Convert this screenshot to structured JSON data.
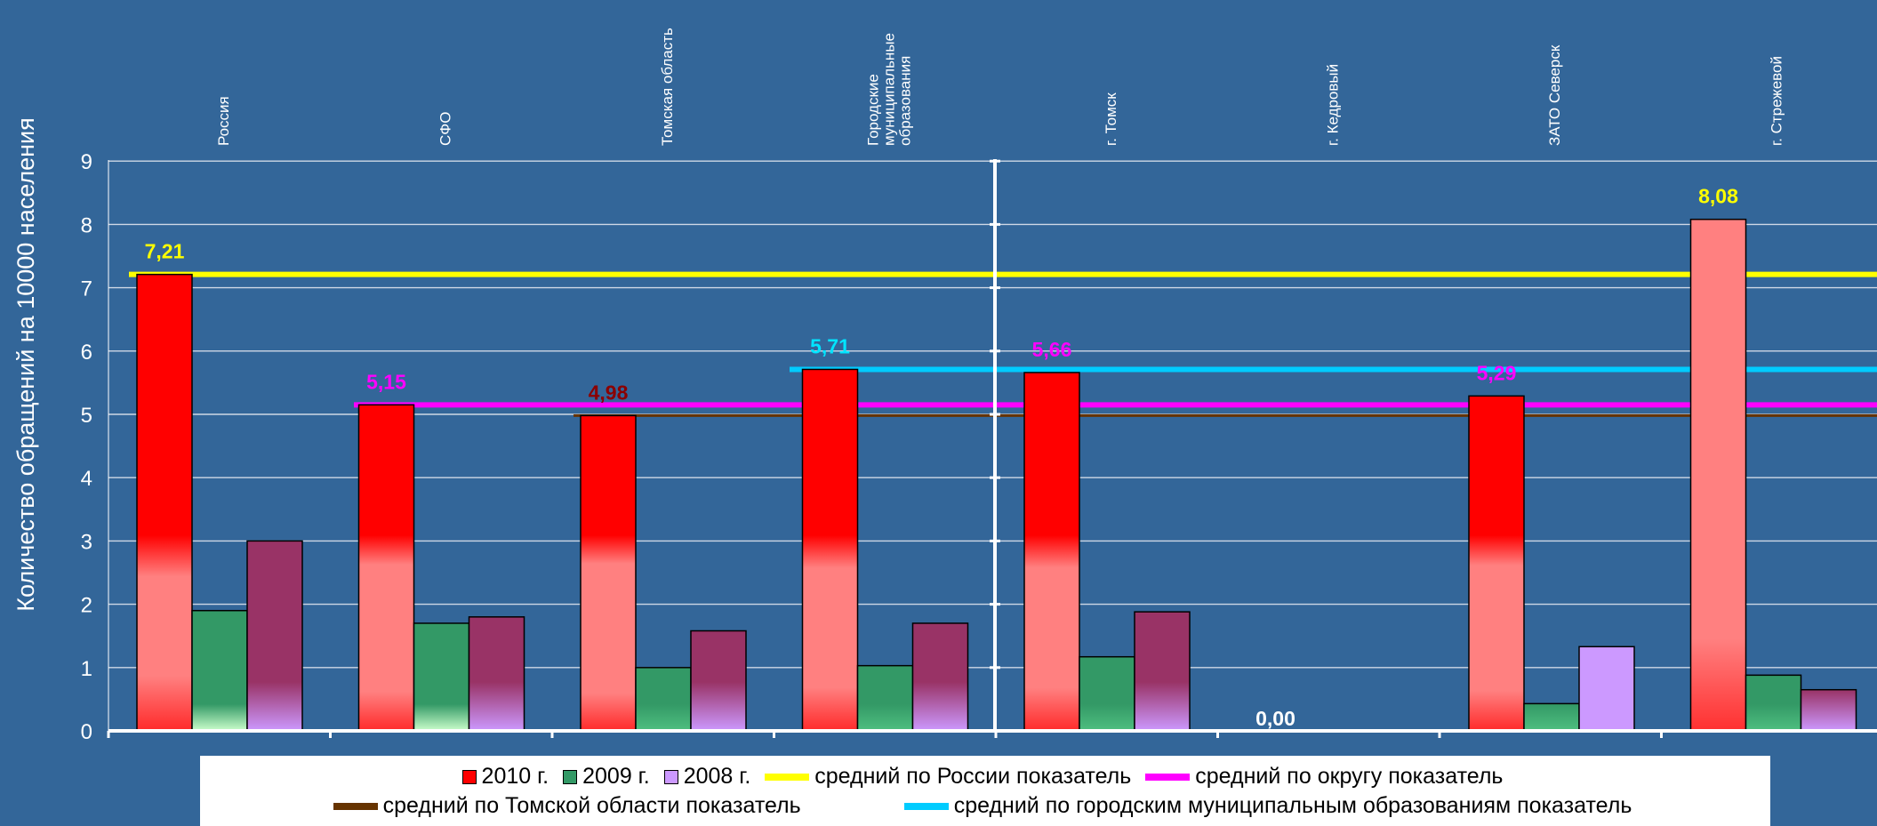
{
  "chart_data": {
    "type": "bar",
    "ylabel": "Количество обращений на 10000 населения",
    "ylim": [
      0,
      9
    ],
    "yticks": [
      "0",
      "1",
      "2",
      "3",
      "4",
      "5",
      "6",
      "7",
      "8",
      "9"
    ],
    "categories": [
      "Россия",
      "СФО",
      "Томская область",
      "Городские муниципальные образования",
      "г. Томск",
      "г. Кедровый",
      "ЗАТО Северск",
      "г. Стрежевой"
    ],
    "series": [
      {
        "name": "2010 г.",
        "color": "#ff0000",
        "values": [
          7.21,
          5.15,
          4.98,
          5.71,
          5.66,
          0.0,
          5.29,
          8.08
        ],
        "labels": [
          "7,21",
          "5,15",
          "4,98",
          "5,71",
          "5,66",
          "0,00",
          "5,29",
          "8,08"
        ],
        "label_colors": [
          "#ffff00",
          "#ff00ff",
          "#8b0000",
          "#00e5ff",
          "#ff00ff",
          "#ffffff",
          "#ff00ff",
          "#ffff00"
        ]
      },
      {
        "name": "2009 г.",
        "color": "#339966",
        "values": [
          1.9,
          1.7,
          1.0,
          1.03,
          1.17,
          0.0,
          0.43,
          0.88
        ]
      },
      {
        "name": "2008 г.",
        "color": "#993366",
        "color_alt": "#cc99ff",
        "values": [
          3.0,
          1.8,
          1.58,
          1.7,
          1.88,
          0.0,
          1.33,
          0.65
        ]
      }
    ],
    "reference_lines": [
      {
        "name": "средний по России показатель",
        "value": 7.21,
        "color": "#ffff00"
      },
      {
        "name": "средний по округу показатель",
        "value": 5.15,
        "color": "#ff00ff"
      },
      {
        "name": "средний по Томской области показатель",
        "value": 4.98,
        "color": "#663300"
      },
      {
        "name": "средний по городским муниципальным образованиям показатель",
        "value": 5.71,
        "color": "#00ccff"
      }
    ],
    "grid": true,
    "legend_position": "bottom"
  }
}
